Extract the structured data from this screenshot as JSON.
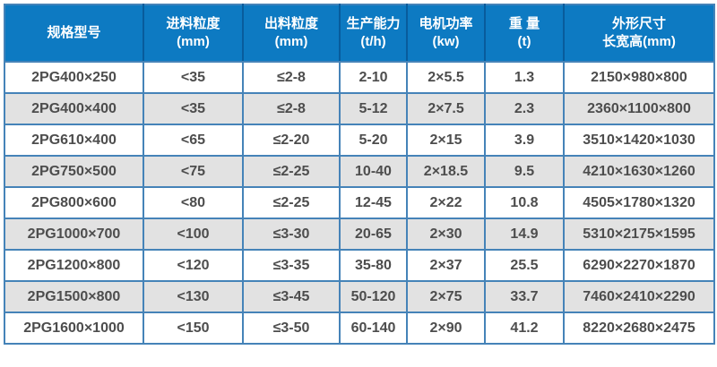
{
  "colors": {
    "header_bg": "#0d7ac2",
    "header_divider": "#085c9c",
    "grid_border": "#4583b8",
    "row_bg": "#ffffff",
    "row_alt_bg": "#e2e2e2",
    "cell_text": "#4d4d4d",
    "header_text": "#ffffff"
  },
  "chart_data": {
    "type": "table",
    "columns": [
      {
        "label": "规格型号",
        "sub": ""
      },
      {
        "label": "进料粒度",
        "sub": "(mm)"
      },
      {
        "label": "出料粒度",
        "sub": "(mm)"
      },
      {
        "label": "生产能力",
        "sub": "(t/h)"
      },
      {
        "label": "电机功率",
        "sub": "(kw)"
      },
      {
        "label": "重 量",
        "sub": "(t)"
      },
      {
        "label": "外形尺寸",
        "sub": "长宽高(mm)"
      }
    ],
    "rows": [
      [
        "2PG400×250",
        "<35",
        "≤2-8",
        "2-10",
        "2×5.5",
        "1.3",
        "2150×980×800"
      ],
      [
        "2PG400×400",
        "<35",
        "≤2-8",
        "5-12",
        "2×7.5",
        "2.3",
        "2360×1100×800"
      ],
      [
        "2PG610×400",
        "<65",
        "≤2-20",
        "5-20",
        "2×15",
        "3.9",
        "3510×1420×1030"
      ],
      [
        "2PG750×500",
        "<75",
        "≤2-25",
        "10-40",
        "2×18.5",
        "9.5",
        "4210×1630×1260"
      ],
      [
        "2PG800×600",
        "<80",
        "≤2-25",
        "12-45",
        "2×22",
        "10.8",
        "4505×1780×1320"
      ],
      [
        "2PG1000×700",
        "<100",
        "≤3-30",
        "20-65",
        "2×30",
        "14.9",
        "5310×2175×1595"
      ],
      [
        "2PG1200×800",
        "<120",
        "≤3-35",
        "35-80",
        "2×37",
        "25.5",
        "6290×2270×1870"
      ],
      [
        "2PG1500×800",
        "<130",
        "≤3-45",
        "50-120",
        "2×75",
        "33.7",
        "7460×2410×2290"
      ],
      [
        "2PG1600×1000",
        "<150",
        "≤3-50",
        "60-140",
        "2×90",
        "41.2",
        "8220×2680×2475"
      ]
    ]
  }
}
